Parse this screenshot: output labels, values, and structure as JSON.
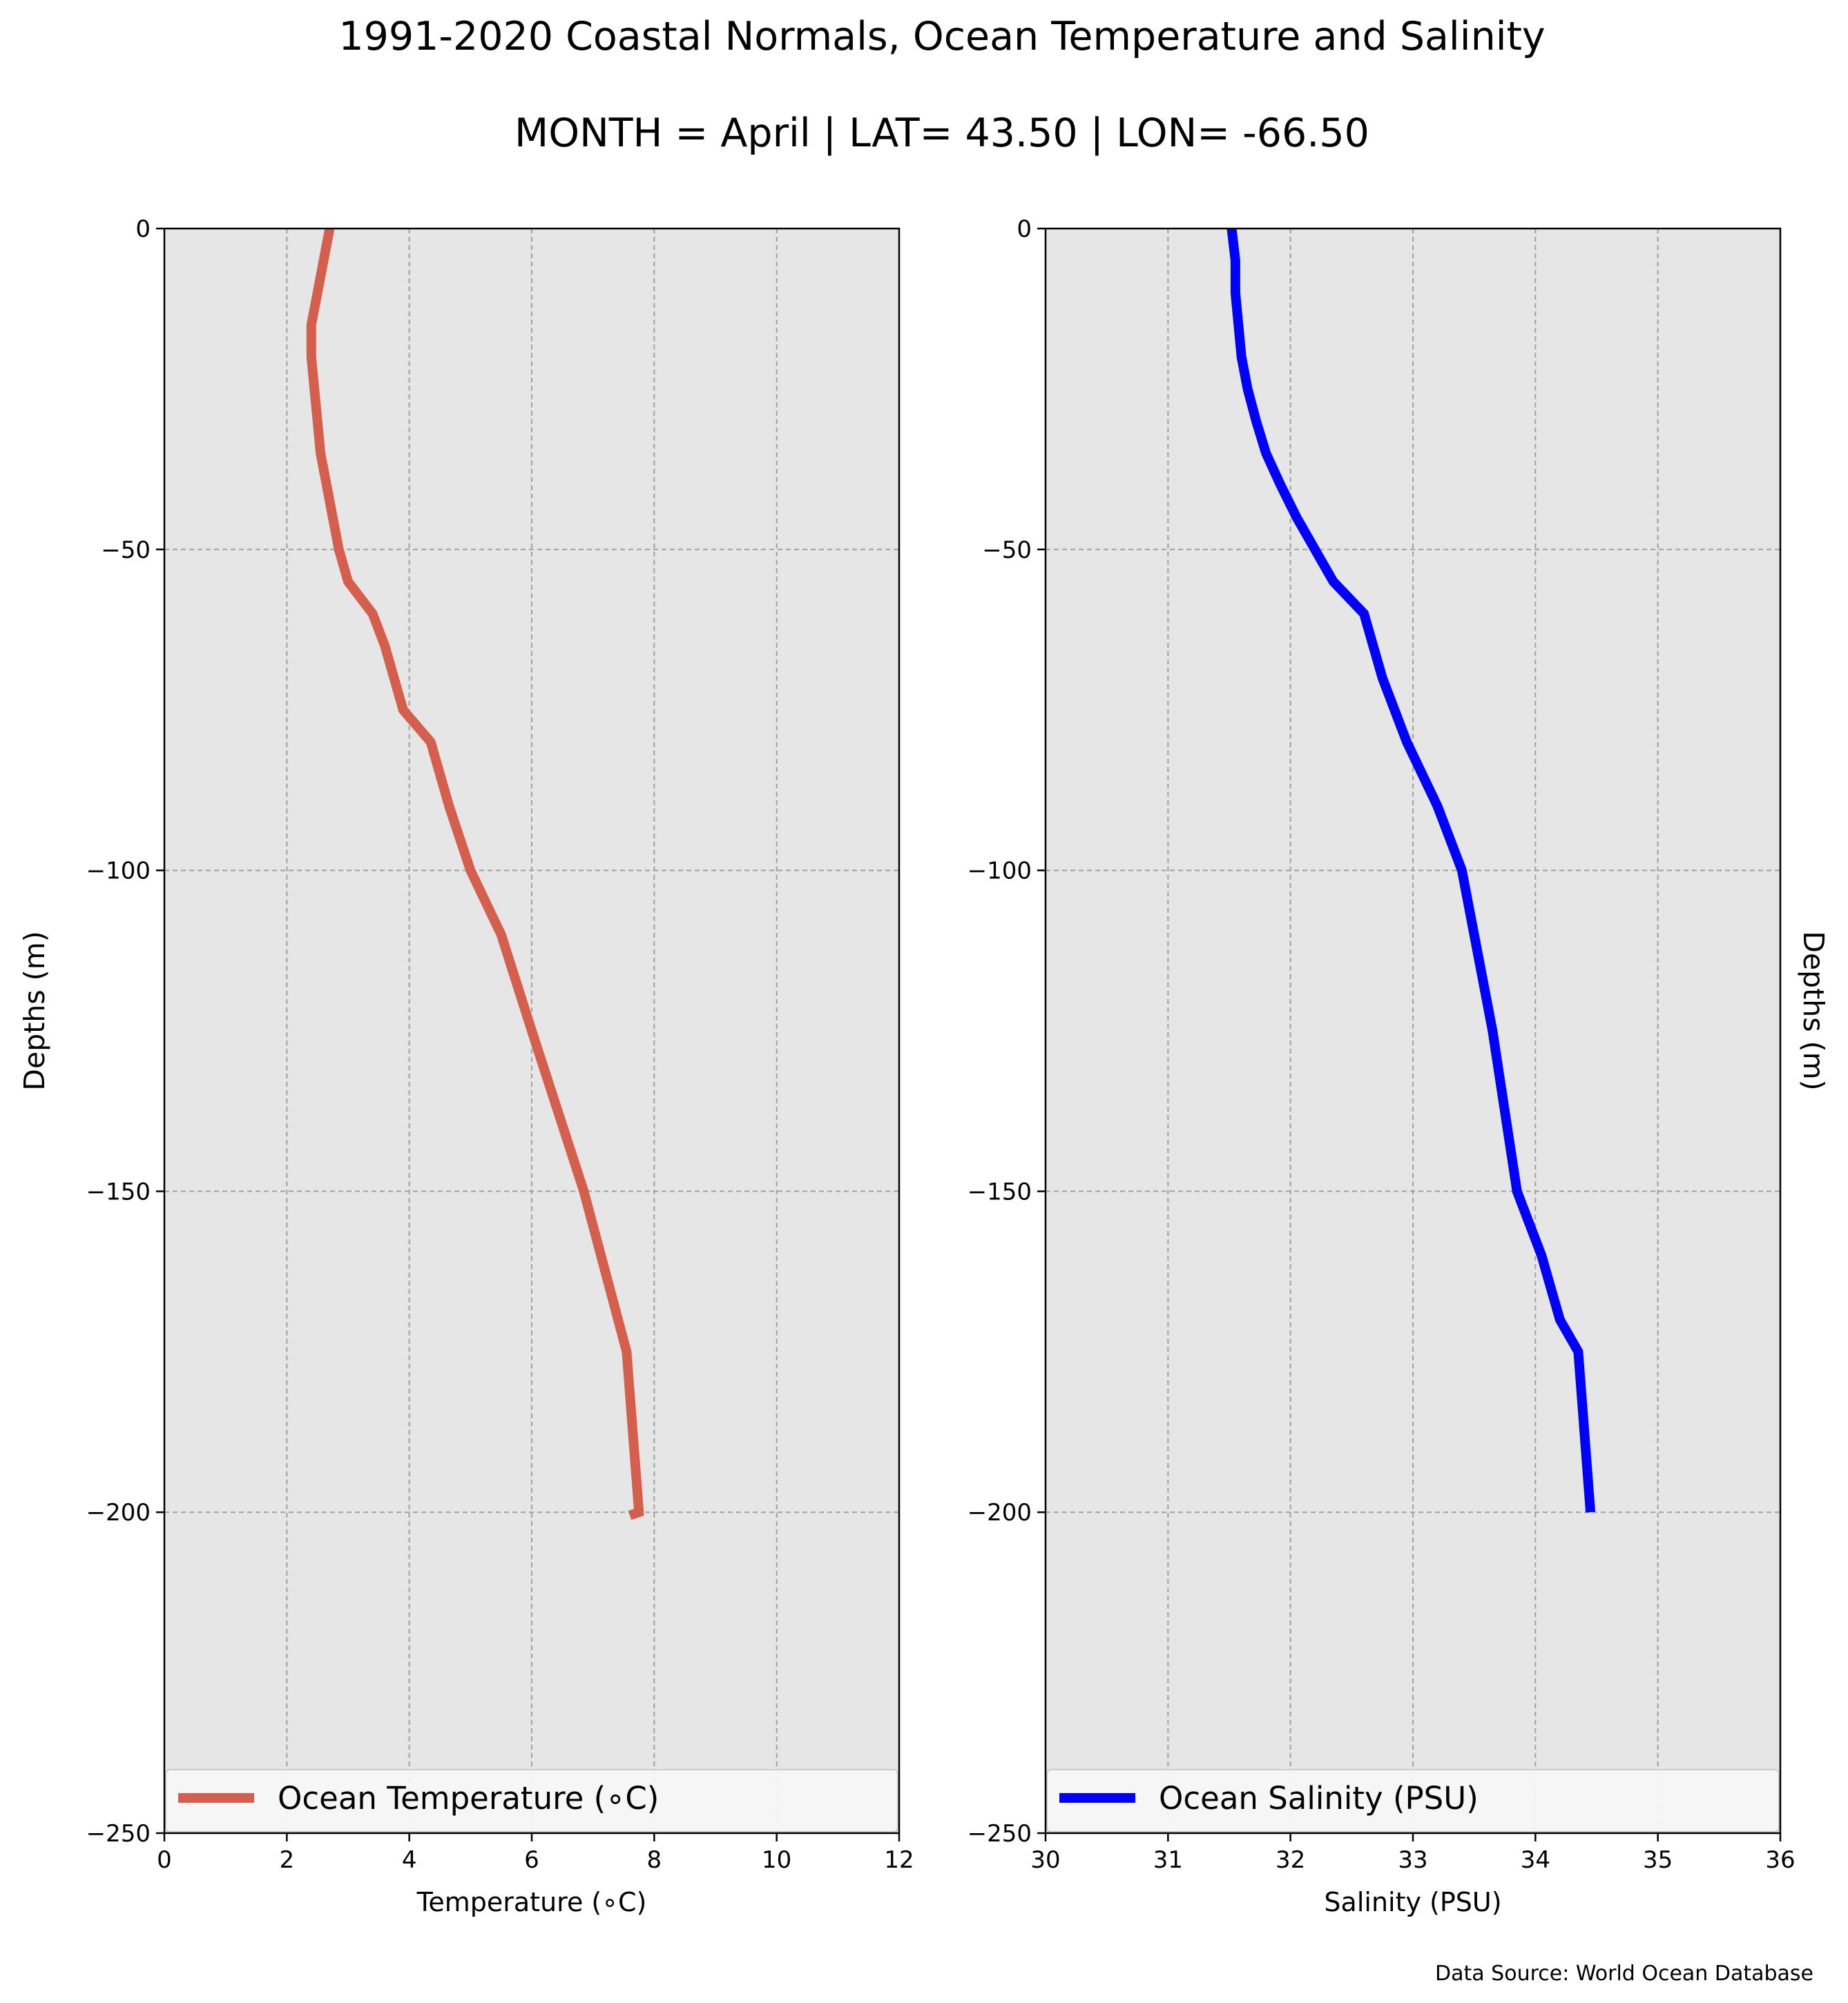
{
  "title": "1991-2020 Coastal Normals, Ocean Temperature and Salinity",
  "subtitle": "MONTH = April | LAT= 43.50 | LON= -66.50",
  "source": "Data Source: World Ocean Database",
  "colors": {
    "temperature": "#d45f4d",
    "salinity": "#0000ff",
    "panel_bg": "#e6e6e6",
    "grid": "#a0a0a0"
  },
  "chart_data": [
    {
      "type": "line",
      "xlabel": "Temperature (∘C)",
      "ylabel": "Depths (m)",
      "xlim": [
        0,
        12
      ],
      "ylim": [
        -250,
        0
      ],
      "xticks": [
        0,
        2,
        4,
        6,
        8,
        10,
        12
      ],
      "yticks": [
        0,
        -50,
        -100,
        -150,
        -200,
        -250
      ],
      "grid": true,
      "legend_position": "bottom",
      "series": [
        {
          "name": "Ocean Temperature (∘C)",
          "x": [
            2.7,
            2.6,
            2.5,
            2.4,
            2.4,
            2.45,
            2.5,
            2.55,
            2.65,
            2.75,
            2.85,
            3.0,
            3.4,
            3.6,
            3.75,
            3.9,
            4.35,
            4.65,
            5.0,
            5.5,
            6.0,
            6.85,
            7.55,
            7.75,
            7.6
          ],
          "y": [
            0,
            -5,
            -10,
            -15,
            -20,
            -25,
            -30,
            -35,
            -40,
            -45,
            -50,
            -55,
            -60,
            -65,
            -70,
            -75,
            -80,
            -90,
            -100,
            -110,
            -125,
            -150,
            -175,
            -200,
            -200.5
          ]
        }
      ]
    },
    {
      "type": "line",
      "xlabel": "Salinity (PSU)",
      "ylabel": "Depths (m)",
      "xlim": [
        30,
        36
      ],
      "ylim": [
        -250,
        0
      ],
      "xticks": [
        30,
        31,
        32,
        33,
        34,
        35,
        36
      ],
      "yticks": [
        0,
        -50,
        -100,
        -150,
        -200,
        -250
      ],
      "grid": true,
      "legend_position": "bottom",
      "series": [
        {
          "name": "Ocean Salinity (PSU)",
          "x": [
            31.52,
            31.55,
            31.55,
            31.6,
            31.65,
            31.72,
            31.8,
            31.92,
            32.05,
            32.2,
            32.35,
            32.6,
            32.75,
            32.95,
            33.2,
            33.4,
            33.65,
            33.85,
            34.05,
            34.2,
            34.35,
            34.45
          ],
          "y": [
            0,
            -5,
            -10,
            -20,
            -25,
            -30,
            -35,
            -40,
            -45,
            -50,
            -55,
            -60,
            -70,
            -80,
            -90,
            -100,
            -125,
            -150,
            -160,
            -170,
            -175,
            -200
          ]
        }
      ]
    }
  ]
}
